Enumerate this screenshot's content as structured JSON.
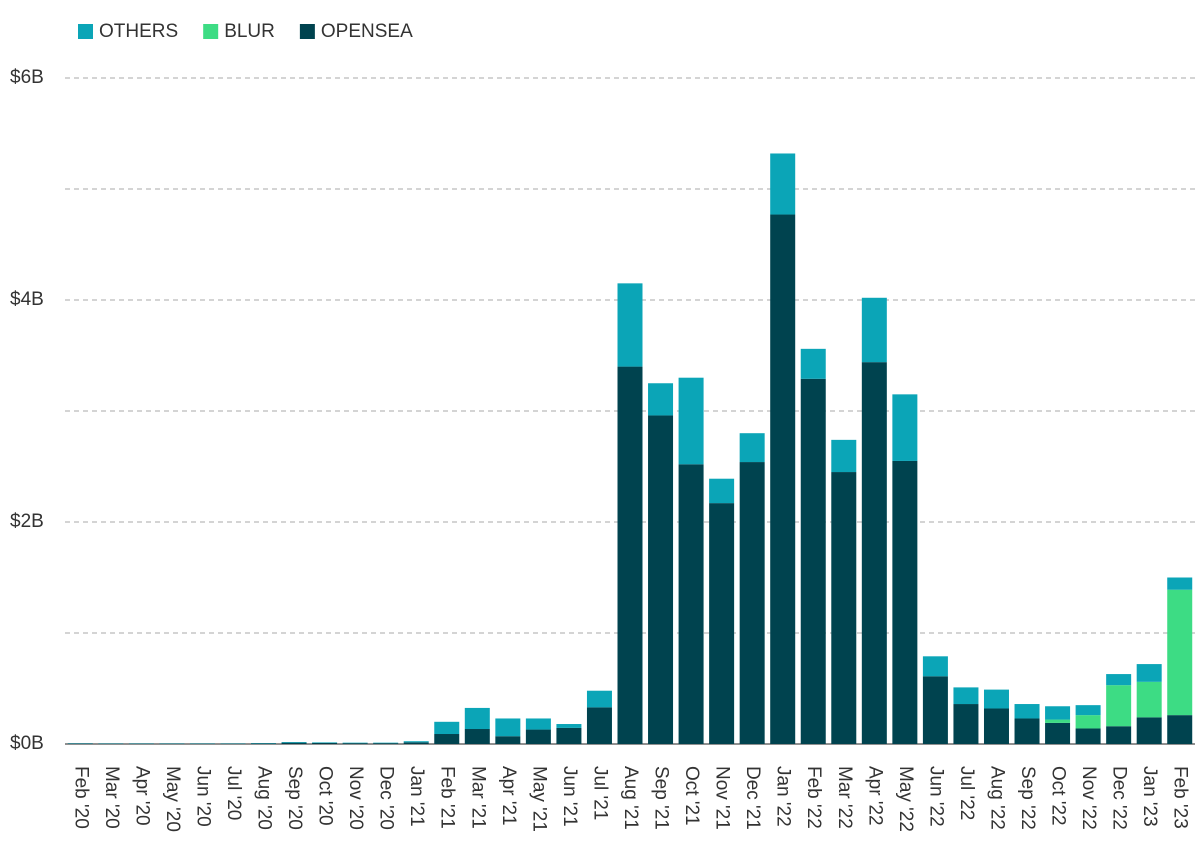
{
  "chart_data": {
    "type": "stacked_bar",
    "categories": [
      "Feb '20",
      "Mar '20",
      "Apr '20",
      "May '20",
      "Jun '20",
      "Jul '20",
      "Aug '20",
      "Sep '20",
      "Oct '20",
      "Nov '20",
      "Dec '20",
      "Jan '21",
      "Feb '21",
      "Mar '21",
      "Apr '21",
      "May '21",
      "Jun '21",
      "Jul '21",
      "Aug '21",
      "Sep '21",
      "Oct '21",
      "Nov '21",
      "Dec '21",
      "Jan '22",
      "Feb '22",
      "Mar '22",
      "Apr '22",
      "May '22",
      "Jun '22",
      "Jul '22",
      "Aug '22",
      "Sep '22",
      "Oct '22",
      "Nov '22",
      "Dec '22",
      "Jan '23",
      "Feb '23"
    ],
    "series": [
      {
        "name": "OTHERS",
        "color": "#0ba5b7",
        "values": [
          0.002,
          0.002,
          0.002,
          0.002,
          0.002,
          0.002,
          0.003,
          0.006,
          0.005,
          0.004,
          0.004,
          0.01,
          0.11,
          0.19,
          0.16,
          0.1,
          0.035,
          0.15,
          0.75,
          0.29,
          0.78,
          0.22,
          0.26,
          0.55,
          0.27,
          0.29,
          0.58,
          0.6,
          0.18,
          0.15,
          0.17,
          0.13,
          0.12,
          0.09,
          0.1,
          0.16,
          0.11
        ]
      },
      {
        "name": "BLUR",
        "color": "#3ddc84",
        "values": [
          0,
          0,
          0,
          0,
          0,
          0,
          0,
          0,
          0,
          0,
          0,
          0,
          0,
          0,
          0,
          0,
          0,
          0,
          0,
          0,
          0,
          0,
          0,
          0,
          0,
          0,
          0,
          0,
          0,
          0,
          0,
          0,
          0.03,
          0.12,
          0.37,
          0.32,
          1.13
        ]
      },
      {
        "name": "OPENSEA",
        "color": "#00434f",
        "values": [
          0.005,
          0.004,
          0.004,
          0.004,
          0.004,
          0.004,
          0.006,
          0.012,
          0.01,
          0.008,
          0.008,
          0.015,
          0.09,
          0.135,
          0.07,
          0.13,
          0.145,
          0.33,
          3.4,
          2.96,
          2.52,
          2.17,
          2.54,
          4.77,
          3.29,
          2.45,
          3.44,
          2.55,
          0.61,
          0.36,
          0.32,
          0.23,
          0.19,
          0.14,
          0.16,
          0.24,
          0.26
        ]
      }
    ],
    "ylim": [
      0,
      6
    ],
    "yticks": [
      {
        "value": 0,
        "label": "$0B"
      },
      {
        "value": 1,
        "label": null
      },
      {
        "value": 2,
        "label": "$2B"
      },
      {
        "value": 3,
        "label": null
      },
      {
        "value": 4,
        "label": "$4B"
      },
      {
        "value": 5,
        "label": null
      },
      {
        "value": 6,
        "label": "$6B"
      }
    ],
    "grid": true
  }
}
